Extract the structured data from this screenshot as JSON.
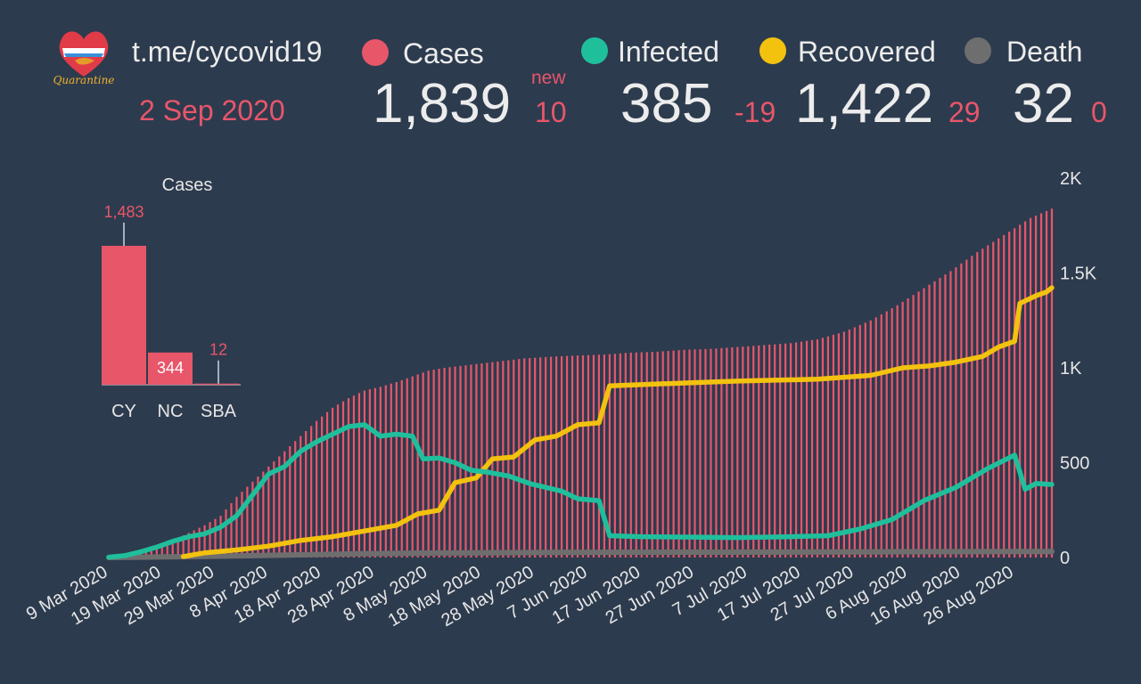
{
  "header": {
    "site": "t.me/cycovid19",
    "date": "2 Sep 2020",
    "logo_text": "Quarantine"
  },
  "stats": {
    "new_label": "new",
    "cases": {
      "label": "Cases",
      "value": "1,839",
      "delta": "10",
      "color": "#e8566a"
    },
    "infected": {
      "label": "Infected",
      "value": "385",
      "delta": "-19",
      "color": "#1fbf9c"
    },
    "recovered": {
      "label": "Recovered",
      "value": "1,422",
      "delta": "29",
      "color": "#f2c20f"
    },
    "death": {
      "label": "Death",
      "value": "32",
      "delta": "0",
      "color": "#6e6e6e"
    }
  },
  "chart_data": [
    {
      "type": "bar",
      "title": "Cases",
      "categories": [
        "CY",
        "NC",
        "SBA"
      ],
      "values": [
        1483,
        344,
        12
      ],
      "value_labels": [
        "1,483",
        "344",
        "12"
      ],
      "color": "#e8566a"
    },
    {
      "type": "bar+line",
      "x_tick_labels": [
        "9 Mar 2020",
        "19 Mar 2020",
        "29 Mar 2020",
        "8 Apr 2020",
        "18 Apr 2020",
        "28 Apr 2020",
        "8 May 2020",
        "18 May 2020",
        "28 May 2020",
        "7 Jun 2020",
        "17 Jun 2020",
        "27 Jun 2020",
        "7 Jul 2020",
        "17 Jul 2020",
        "27 Jul 2020",
        "6 Aug 2020",
        "16 Aug 2020",
        "26 Aug 2020"
      ],
      "x_start": "2020-03-09",
      "x_end": "2020-09-02",
      "y_tick_labels": [
        "0",
        "500",
        "1K",
        "1.5K",
        "2K"
      ],
      "ylim": [
        0,
        2000
      ],
      "series": [
        {
          "name": "Cases",
          "type": "bar",
          "color": "#e8566a",
          "points": [
            [
              "2020-03-09",
              2
            ],
            [
              "2020-03-12",
              10
            ],
            [
              "2020-03-15",
              30
            ],
            [
              "2020-03-18",
              60
            ],
            [
              "2020-03-21",
              90
            ],
            [
              "2020-03-24",
              130
            ],
            [
              "2020-03-27",
              170
            ],
            [
              "2020-03-30",
              220
            ],
            [
              "2020-04-02",
              320
            ],
            [
              "2020-04-05",
              400
            ],
            [
              "2020-04-08",
              480
            ],
            [
              "2020-04-11",
              560
            ],
            [
              "2020-04-14",
              640
            ],
            [
              "2020-04-17",
              720
            ],
            [
              "2020-04-20",
              790
            ],
            [
              "2020-04-23",
              840
            ],
            [
              "2020-04-26",
              880
            ],
            [
              "2020-04-29",
              900
            ],
            [
              "2020-05-02",
              925
            ],
            [
              "2020-05-05",
              955
            ],
            [
              "2020-05-08",
              985
            ],
            [
              "2020-05-11",
              1000
            ],
            [
              "2020-05-14",
              1010
            ],
            [
              "2020-05-17",
              1020
            ],
            [
              "2020-05-20",
              1030
            ],
            [
              "2020-05-23",
              1040
            ],
            [
              "2020-05-26",
              1050
            ],
            [
              "2020-05-29",
              1055
            ],
            [
              "2020-06-01",
              1060
            ],
            [
              "2020-06-05",
              1065
            ],
            [
              "2020-06-10",
              1070
            ],
            [
              "2020-06-15",
              1080
            ],
            [
              "2020-06-20",
              1085
            ],
            [
              "2020-06-25",
              1095
            ],
            [
              "2020-06-30",
              1100
            ],
            [
              "2020-07-05",
              1110
            ],
            [
              "2020-07-10",
              1120
            ],
            [
              "2020-07-15",
              1130
            ],
            [
              "2020-07-20",
              1150
            ],
            [
              "2020-07-25",
              1190
            ],
            [
              "2020-07-30",
              1250
            ],
            [
              "2020-08-04",
              1330
            ],
            [
              "2020-08-09",
              1420
            ],
            [
              "2020-08-14",
              1510
            ],
            [
              "2020-08-19",
              1610
            ],
            [
              "2020-08-24",
              1700
            ],
            [
              "2020-08-29",
              1790
            ],
            [
              "2020-09-02",
              1839
            ]
          ]
        },
        {
          "name": "Infected",
          "type": "line",
          "color": "#1fbf9c",
          "points": [
            [
              "2020-03-09",
              2
            ],
            [
              "2020-03-12",
              10
            ],
            [
              "2020-03-15",
              30
            ],
            [
              "2020-03-18",
              55
            ],
            [
              "2020-03-21",
              85
            ],
            [
              "2020-03-24",
              110
            ],
            [
              "2020-03-27",
              125
            ],
            [
              "2020-03-30",
              160
            ],
            [
              "2020-04-02",
              220
            ],
            [
              "2020-04-05",
              330
            ],
            [
              "2020-04-08",
              440
            ],
            [
              "2020-04-11",
              480
            ],
            [
              "2020-04-14",
              560
            ],
            [
              "2020-04-17",
              610
            ],
            [
              "2020-04-20",
              650
            ],
            [
              "2020-04-23",
              690
            ],
            [
              "2020-04-26",
              700
            ],
            [
              "2020-04-29",
              640
            ],
            [
              "2020-05-02",
              650
            ],
            [
              "2020-05-05",
              640
            ],
            [
              "2020-05-07",
              520
            ],
            [
              "2020-05-10",
              525
            ],
            [
              "2020-05-13",
              500
            ],
            [
              "2020-05-16",
              460
            ],
            [
              "2020-05-19",
              450
            ],
            [
              "2020-05-23",
              430
            ],
            [
              "2020-05-27",
              390
            ],
            [
              "2020-05-30",
              370
            ],
            [
              "2020-06-02",
              350
            ],
            [
              "2020-06-05",
              310
            ],
            [
              "2020-06-09",
              300
            ],
            [
              "2020-06-11",
              115
            ],
            [
              "2020-06-17",
              110
            ],
            [
              "2020-06-25",
              108
            ],
            [
              "2020-07-05",
              105
            ],
            [
              "2020-07-15",
              110
            ],
            [
              "2020-07-22",
              115
            ],
            [
              "2020-07-28",
              150
            ],
            [
              "2020-08-03",
              200
            ],
            [
              "2020-08-09",
              300
            ],
            [
              "2020-08-15",
              370
            ],
            [
              "2020-08-21",
              470
            ],
            [
              "2020-08-26",
              540
            ],
            [
              "2020-08-28",
              360
            ],
            [
              "2020-08-30",
              390
            ],
            [
              "2020-09-02",
              385
            ]
          ]
        },
        {
          "name": "Recovered",
          "type": "line",
          "color": "#f2c20f",
          "points": [
            [
              "2020-03-23",
              5
            ],
            [
              "2020-03-27",
              25
            ],
            [
              "2020-04-02",
              40
            ],
            [
              "2020-04-08",
              60
            ],
            [
              "2020-04-14",
              90
            ],
            [
              "2020-04-20",
              110
            ],
            [
              "2020-04-26",
              140
            ],
            [
              "2020-05-02",
              170
            ],
            [
              "2020-05-06",
              230
            ],
            [
              "2020-05-10",
              250
            ],
            [
              "2020-05-13",
              395
            ],
            [
              "2020-05-17",
              420
            ],
            [
              "2020-05-20",
              520
            ],
            [
              "2020-05-24",
              530
            ],
            [
              "2020-05-28",
              620
            ],
            [
              "2020-06-01",
              640
            ],
            [
              "2020-06-05",
              700
            ],
            [
              "2020-06-09",
              710
            ],
            [
              "2020-06-11",
              905
            ],
            [
              "2020-06-20",
              915
            ],
            [
              "2020-07-05",
              930
            ],
            [
              "2020-07-20",
              940
            ],
            [
              "2020-07-30",
              960
            ],
            [
              "2020-08-05",
              1000
            ],
            [
              "2020-08-10",
              1010
            ],
            [
              "2020-08-15",
              1030
            ],
            [
              "2020-08-20",
              1060
            ],
            [
              "2020-08-23",
              1110
            ],
            [
              "2020-08-26",
              1140
            ],
            [
              "2020-08-27",
              1340
            ],
            [
              "2020-08-30",
              1380
            ],
            [
              "2020-09-01",
              1400
            ],
            [
              "2020-09-02",
              1422
            ]
          ]
        },
        {
          "name": "Death",
          "type": "line",
          "color": "#6e6e6e",
          "points": [
            [
              "2020-03-09",
              0
            ],
            [
              "2020-03-25",
              5
            ],
            [
              "2020-04-10",
              12
            ],
            [
              "2020-04-25",
              20
            ],
            [
              "2020-05-10",
              24
            ],
            [
              "2020-06-01",
              27
            ],
            [
              "2020-07-01",
              28
            ],
            [
              "2020-08-01",
              30
            ],
            [
              "2020-09-02",
              32
            ]
          ]
        }
      ]
    }
  ]
}
